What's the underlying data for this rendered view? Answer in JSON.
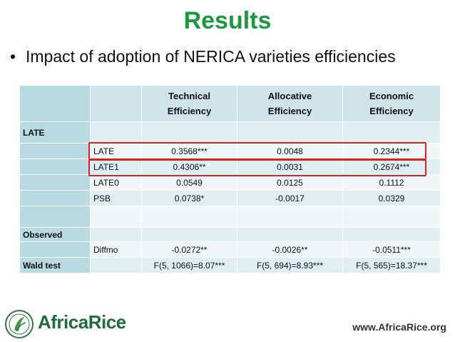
{
  "slide": {
    "title": "Results",
    "bullet": "Impact of adoption of NERICA varieties efficiencies"
  },
  "table": {
    "headers": [
      "Technical Efficiency",
      "Allocative Efficiency",
      "Economic Efficiency"
    ],
    "header_lines": [
      [
        "Technical",
        "Efficiency"
      ],
      [
        "Allocative",
        "Efficiency"
      ],
      [
        "Economic",
        "Efficiency"
      ]
    ],
    "rows": [
      {
        "group": "LATE",
        "label": "",
        "values": [
          "",
          "",
          ""
        ]
      },
      {
        "group": "",
        "label": "LATE",
        "values": [
          "0.3568***",
          "0.0048",
          "0.2344***"
        ]
      },
      {
        "group": "",
        "label": "LATE1",
        "values": [
          "0.4306**",
          "0.0031",
          "0.2674***"
        ]
      },
      {
        "group": "",
        "label": "LATE0",
        "values": [
          "0.0549",
          "0.0125",
          "0.1112"
        ]
      },
      {
        "group": "",
        "label": "PSB",
        "values": [
          "0.0738*",
          "-0.0017",
          "0.0329"
        ]
      },
      {
        "group": "",
        "label": "",
        "values": [
          "",
          "",
          ""
        ]
      },
      {
        "group": "Observed",
        "label": "",
        "values": [
          "",
          "",
          ""
        ]
      },
      {
        "group": "",
        "label": "Diffmo",
        "values": [
          "-0.0272**",
          "-0.0026**",
          "-0.0511***"
        ]
      },
      {
        "group": "Wald test",
        "label": "",
        "values": [
          "F(5, 1066)=8.07***",
          "F(5, 694)=8.93***",
          "F(5, 565)=18.37***"
        ]
      }
    ]
  },
  "footer": {
    "brand": "AfricaRice",
    "website": "www.AfricaRice.org",
    "logo_icon": "africarice-seal-icon"
  },
  "colors": {
    "title": "#1a9a3a",
    "header_bg": "#cfe4e9",
    "label_bg": "#b8dae1",
    "row_dark": "#dfeef2",
    "row_light": "#eef6f8",
    "highlight": "#e02020"
  }
}
